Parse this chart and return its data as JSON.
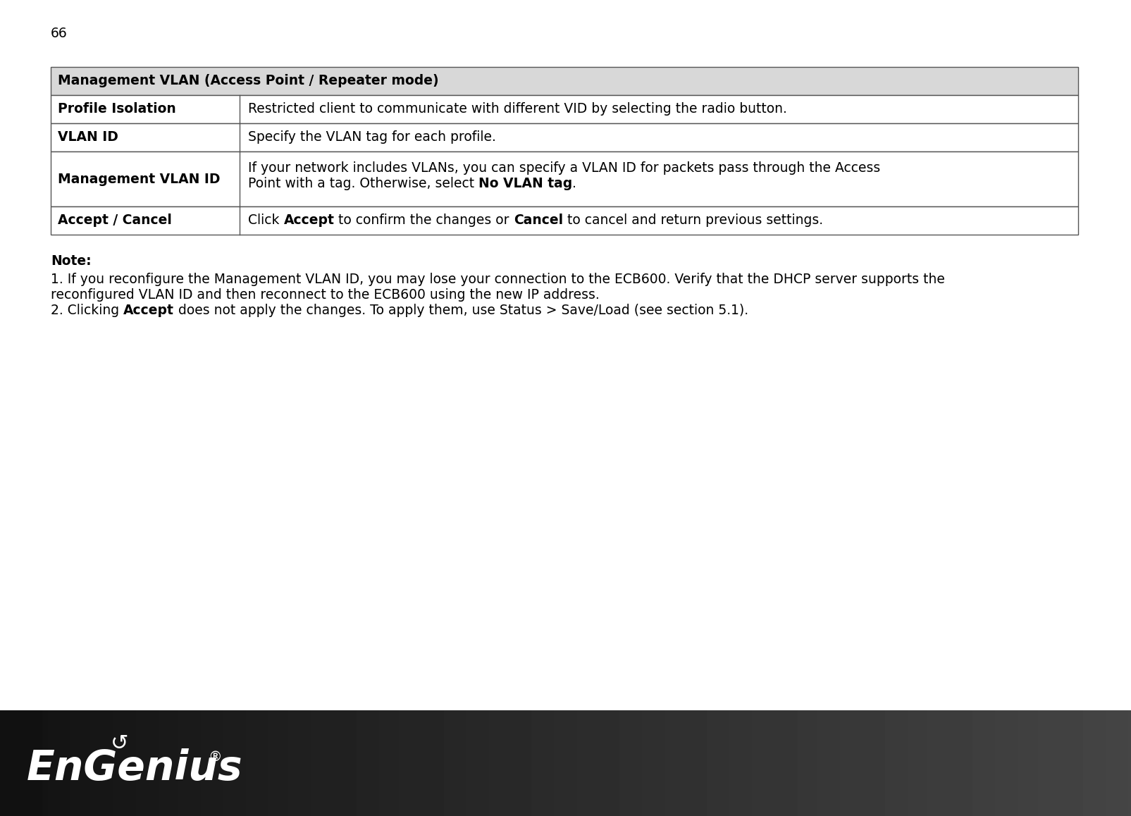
{
  "page_number": "66",
  "table_header": "Management VLAN (Access Point / Repeater mode)",
  "table_header_bg": "#d8d8d8",
  "table_border_color": "#555555",
  "rows": [
    {
      "label": "Profile Isolation",
      "text_plain": "Restricted client to communicate with different VID by selecting the radio button.",
      "multiline": false
    },
    {
      "label": "VLAN ID",
      "text_plain": "Specify the VLAN tag for each profile.",
      "multiline": false
    },
    {
      "label": "Management VLAN ID",
      "line1": "If your network includes VLANs, you can specify a VLAN ID for packets pass through the Access",
      "line2_pre": "Point with a tag. Otherwise, select ",
      "line2_bold": "No VLAN tag",
      "line2_post": ".",
      "multiline": true
    },
    {
      "label": "Accept / Cancel",
      "pre1": "Click ",
      "bold1": "Accept",
      "mid": " to confirm the changes or ",
      "bold2": "Cancel",
      "post": " to cancel and return previous settings.",
      "multiline": false
    }
  ],
  "note_label": "Note:",
  "note1_line1": "1. If you reconfigure the Management VLAN ID, you may lose your connection to the ECB600. Verify that the DHCP server supports the",
  "note1_line2": "reconfigured VLAN ID and then reconnect to the ECB600 using the new IP address.",
  "note2_pre": "2. Clicking ",
  "note2_bold": "Accept",
  "note2_post": " does not apply the changes. To apply them, use Status > Save/Load (see section 5.1).",
  "bg_color": "#ffffff",
  "text_color": "#000000",
  "font_size_body": 13.5,
  "font_size_page_num": 13.5,
  "footer_color_left": "#111111",
  "footer_color_right": "#444444"
}
